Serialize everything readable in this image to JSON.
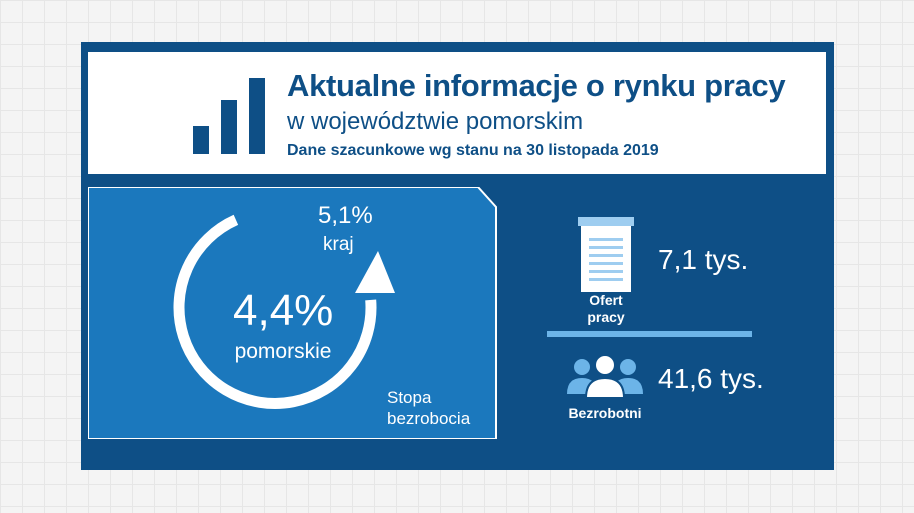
{
  "header": {
    "title": "Aktualne informacje o rynku pracy",
    "subtitle": "w województwie pomorskim",
    "date_note": "Dane szacunkowe wg stanu na 30 listopada 2019"
  },
  "unemployment_rate": {
    "regional_value": "4,4%",
    "regional_label": "pomorskie",
    "national_value": "5,1%",
    "national_label": "kraj",
    "caption_line1": "Stopa",
    "caption_line2": "bezrobocia"
  },
  "job_offers": {
    "value": "7,1 tys.",
    "label_line1": "Ofert",
    "label_line2": "pracy",
    "icon": "document-icon"
  },
  "unemployed": {
    "value": "41,6 tys.",
    "label": "Bezrobotni",
    "icon": "people-icon"
  },
  "colors": {
    "navy": "#0e4f86",
    "mid_blue": "#1b78bd",
    "light_blue": "#6cb4e8",
    "background": "#f4f4f4"
  }
}
